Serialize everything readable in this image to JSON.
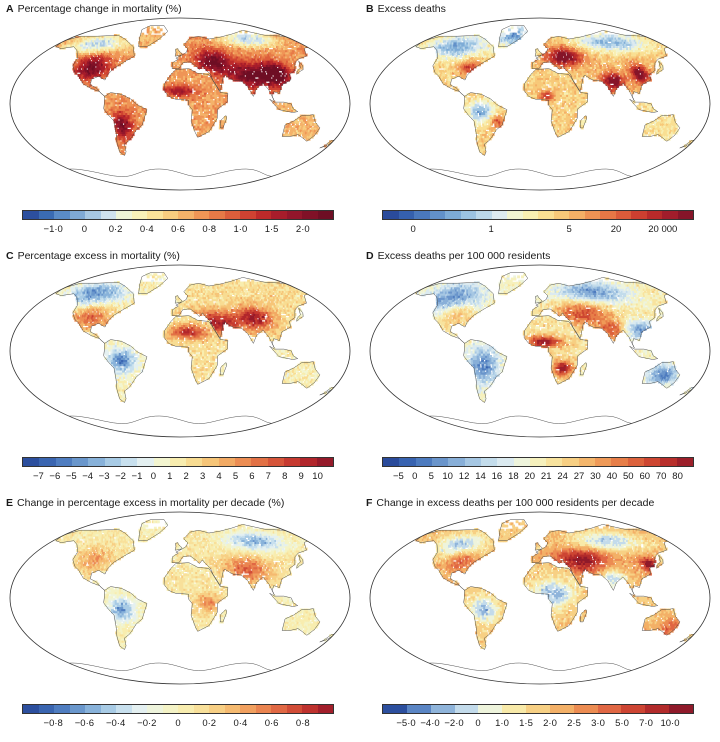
{
  "panels": [
    {
      "letter": "A",
      "title": "Percentage change in mortality (%)",
      "ticks": [
        "−1·0",
        "0",
        "0·2",
        "0·4",
        "0·6",
        "0·8",
        "1·0",
        "1·5",
        "2·0"
      ],
      "tick_bins": [
        2,
        4,
        6,
        8,
        10,
        12,
        14,
        16,
        18
      ],
      "bins": 20,
      "palette": [
        "#2c4f9e",
        "#3a6bb3",
        "#5a8bc6",
        "#7fa9d5",
        "#a7c7e3",
        "#cfe2ee",
        "#eef5d8",
        "#f7f1b9",
        "#f9e29a",
        "#f7cc7f",
        "#f4b26a",
        "#ef9556",
        "#e77a47",
        "#dc5e3b",
        "#cf4232",
        "#bd2a2a",
        "#a71d2b",
        "#93162b",
        "#801127",
        "#6e0e24"
      ],
      "style": "A"
    },
    {
      "letter": "B",
      "title": "Excess deaths",
      "ticks": [
        "0",
        "1",
        "5",
        "20",
        "20 000"
      ],
      "tick_bins": [
        2,
        7,
        12,
        15,
        18
      ],
      "bins": 20,
      "palette": [
        "#2a4b9b",
        "#3560ae",
        "#4a78bd",
        "#6291c9",
        "#7dabd6",
        "#9cc3e1",
        "#bcd8ea",
        "#dceaf0",
        "#f1f4d2",
        "#f8efb2",
        "#f9df93",
        "#f7c979",
        "#f4b066",
        "#ee9354",
        "#e67746",
        "#da5b3a",
        "#cc3f30",
        "#b82a2a",
        "#a11d2b",
        "#861529"
      ],
      "style": "B"
    },
    {
      "letter": "C",
      "title": "Percentage excess in mortality (%)",
      "ticks": [
        "−7",
        "−6",
        "−5",
        "−4",
        "−3",
        "−2",
        "−1",
        "0",
        "1",
        "2",
        "3",
        "4",
        "5",
        "6",
        "7",
        "8",
        "9",
        "10"
      ],
      "tick_bins": [
        1,
        2,
        3,
        4,
        5,
        6,
        7,
        8,
        9,
        10,
        11,
        12,
        13,
        14,
        15,
        16,
        17,
        18
      ],
      "bins": 19,
      "palette": [
        "#2c4f9e",
        "#3a65b0",
        "#4f7dc0",
        "#6a97cc",
        "#88b2da",
        "#a8cbe5",
        "#c8e0ee",
        "#e4f0f1",
        "#f3f5d0",
        "#f8edaf",
        "#f8dc92",
        "#f6c578",
        "#f2aa64",
        "#ec8d53",
        "#e27145",
        "#d6553a",
        "#c63a30",
        "#b1262b",
        "#951a2a"
      ],
      "style": "C"
    },
    {
      "letter": "D",
      "title": "Excess deaths per 100 000 residents",
      "ticks": [
        "−5",
        "0",
        "5",
        "10",
        "12",
        "14",
        "16",
        "18",
        "20",
        "21",
        "24",
        "27",
        "30",
        "40",
        "50",
        "60",
        "70",
        "80"
      ],
      "tick_bins": [
        1,
        2,
        3,
        4,
        5,
        6,
        7,
        8,
        9,
        10,
        11,
        12,
        13,
        14,
        15,
        16,
        17,
        18
      ],
      "bins": 19,
      "palette": [
        "#2a4b9b",
        "#3863b0",
        "#4d7bbf",
        "#6a95cb",
        "#88afd8",
        "#a6c7e3",
        "#c3dceb",
        "#dbeaf0",
        "#eef4dc",
        "#f6f1bd",
        "#f8e39e",
        "#f7cf83",
        "#f4b66c",
        "#ef9a58",
        "#e77e48",
        "#dc623c",
        "#cd4631",
        "#b82f2b",
        "#9c1f2a"
      ],
      "style": "D"
    },
    {
      "letter": "E",
      "title": "Change in percentage excess in mortality per decade (%)",
      "ticks": [
        "−0·8",
        "−0·6",
        "−0·4",
        "−0·2",
        "0",
        "0·2",
        "0·4",
        "0·6",
        "0·8"
      ],
      "tick_bins": [
        2,
        4,
        6,
        8,
        10,
        12,
        14,
        16,
        18
      ],
      "bins": 20,
      "palette": [
        "#2c4f9e",
        "#3a65b0",
        "#4f7dc0",
        "#6a97cc",
        "#88b2da",
        "#a8cbe5",
        "#c8e0ee",
        "#e4f0f1",
        "#eef4dc",
        "#f4f3c6",
        "#f8edaf",
        "#f8e09a",
        "#f7cf84",
        "#f5ba70",
        "#f1a05f",
        "#ea8450",
        "#e06844",
        "#d14c37",
        "#be322e",
        "#a21f2b"
      ],
      "style": "E"
    },
    {
      "letter": "F",
      "title": "Change in excess deaths per 100 000 residents per decade",
      "ticks": [
        "−5·0",
        "−4·0",
        "−2·0",
        "0",
        "1·0",
        "1·5",
        "2·0",
        "2·5",
        "3·0",
        "5·0",
        "7·0",
        "10·0"
      ],
      "tick_bins": [
        1,
        2,
        3,
        4,
        5,
        6,
        7,
        8,
        9,
        10,
        11,
        12
      ],
      "bins": 13,
      "palette": [
        "#2c4f9e",
        "#5a85c4",
        "#8fb4da",
        "#c3dbeb",
        "#eef4dc",
        "#f8eaa9",
        "#f7d084",
        "#f3b067",
        "#ec8c52",
        "#e06744",
        "#cd4533",
        "#b22b2b",
        "#8f1a2a"
      ],
      "style": "F"
    }
  ],
  "colors": {
    "coastline": "#3b3b3b",
    "frame": "#333333",
    "land_base": "#ffffff"
  }
}
